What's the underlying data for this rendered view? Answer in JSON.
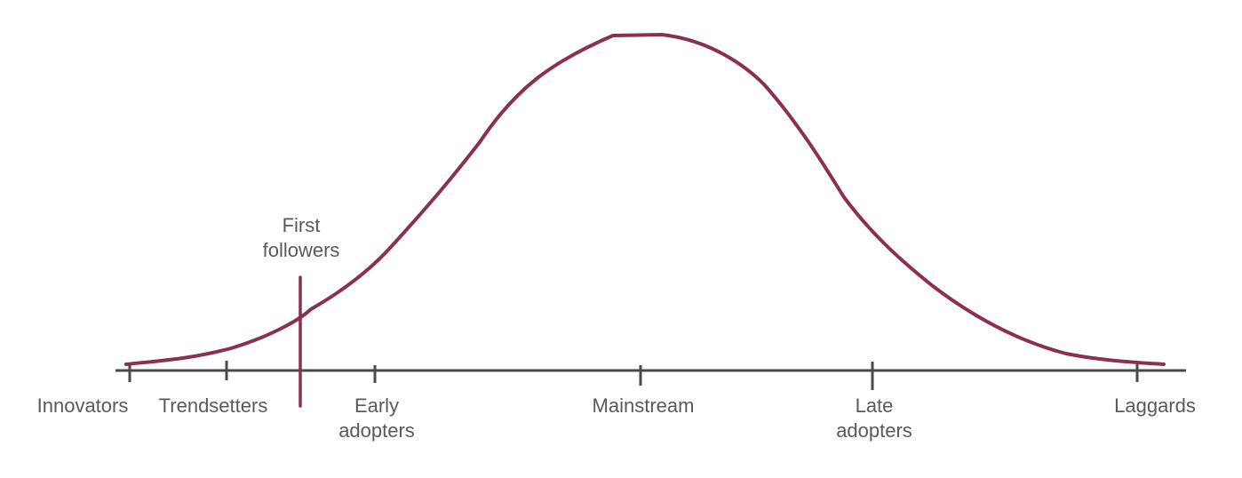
{
  "colors": {
    "curve": "#8a3050",
    "marker": "#8a3050",
    "axis": "#4a4a4a",
    "text": "#5a5a5a"
  },
  "labels": {
    "innovators": "Innovators",
    "trendsetters": "Trendsetters",
    "early_adopters": [
      "Early",
      "adopters"
    ],
    "mainstream": "Mainstream",
    "late_adopters": [
      "Late",
      "adopters"
    ],
    "laggards": "Laggards",
    "first_followers": [
      "First",
      "followers"
    ]
  }
}
